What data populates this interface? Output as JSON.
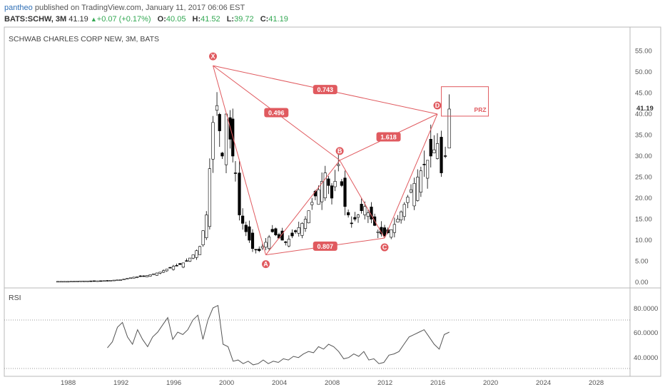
{
  "header": {
    "user": "pantheo",
    "published": "published on TradingView.com, January 11, 2017 06:06 EST",
    "symbol": "BATS:SCHW, 3M",
    "price": "41.19",
    "change": "+0.07 (+0.17%)",
    "open_label": "O:",
    "open": "40.05",
    "high_label": "H:",
    "high": "41.52",
    "low_label": "L:",
    "low": "39.72",
    "close_label": "C:",
    "close": "41.19"
  },
  "chart_title": "SCHWAB CHARLES CORP NEW, 3M, BATS",
  "price_axis": [
    "55.00",
    "50.00",
    "45.00",
    "40.00",
    "35.00",
    "30.00",
    "25.00",
    "20.00",
    "15.00",
    "10.00",
    "5.00",
    "0.00"
  ],
  "last_price_label": "41.19",
  "rsi_label": "RSI",
  "rsi_axis": [
    "80.0000",
    "60.0000",
    "40.0000"
  ],
  "time_axis": [
    "1988",
    "1992",
    "1996",
    "2000",
    "2004",
    "2008",
    "2012",
    "2016",
    "2020",
    "2024",
    "2028"
  ],
  "pattern": {
    "points": [
      "X",
      "A",
      "B",
      "C",
      "D"
    ],
    "ratios": [
      "0.496",
      "0.743",
      "1.618",
      "0.807"
    ],
    "prz_label": "PRZ"
  },
  "colors": {
    "pattern": "#e05a5f",
    "up": "#33a853",
    "candle": "#000000",
    "grid": "#d9d9d9"
  },
  "chart_data": {
    "type": "line",
    "title": "SCHWAB CHARLES CORP NEW, 3M, BATS",
    "x_range": [
      1986,
      2030
    ],
    "y_range": [
      0,
      57
    ],
    "series": [
      {
        "x": [
          1987,
          1988,
          1989,
          1990,
          1991,
          1992,
          1993,
          1994,
          1995,
          1996,
          1996.5,
          1997,
          1997.5,
          1998,
          1998.5,
          1999,
          1999.3,
          1999.7,
          2000,
          2000.3,
          2000.7,
          2001,
          2001.5,
          2002,
          2002.5,
          2003,
          2003.5,
          2004,
          2004.5,
          2005,
          2005.5,
          2006,
          2006.5,
          2007,
          2007.5,
          2008,
          2008.5,
          2009,
          2009.5,
          2010,
          2010.5,
          2011,
          2011.5,
          2012,
          2012.5,
          2013,
          2013.5,
          2014,
          2014.5,
          2015,
          2015.5,
          2016,
          2016.3,
          2016.6,
          2016.9
        ],
        "values": [
          0.2,
          0.2,
          0.3,
          0.3,
          0.4,
          0.6,
          1.2,
          1.6,
          2.4,
          3.8,
          4.2,
          5.0,
          6.5,
          8.5,
          16,
          38,
          42,
          30,
          40,
          34,
          26,
          16,
          12,
          8,
          7.5,
          9.5,
          12,
          10.5,
          9.5,
          11,
          13,
          15,
          19,
          22,
          26,
          20,
          28,
          18,
          14,
          16,
          18,
          15,
          12,
          11,
          12.5,
          15,
          18.5,
          22,
          25,
          28,
          30,
          33,
          26,
          30,
          41.19
        ]
      }
    ]
  }
}
